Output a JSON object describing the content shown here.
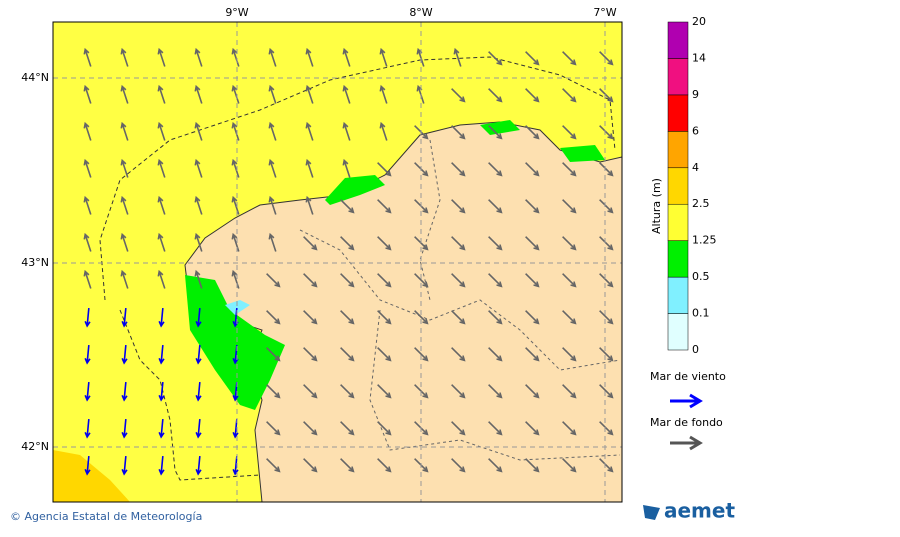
{
  "map": {
    "lon_labels": [
      "9°W",
      "8°W",
      "7°W"
    ],
    "lat_labels": [
      "44°N",
      "43°N",
      "42°N"
    ]
  },
  "colorbar": {
    "title": "Altura (m)",
    "ticks": [
      0,
      0.1,
      0.5,
      1.25,
      2.5,
      4,
      6,
      9,
      14,
      20
    ],
    "colors": [
      "#e0ffff",
      "#80f0ff",
      "#00f000",
      "#ffff33",
      "#ffd700",
      "#ffa500",
      "#ff0000",
      "#f01080",
      "#b000b0"
    ]
  },
  "legend": {
    "wind_sea": "Mar de viento",
    "swell": "Mar de fondo"
  },
  "footer": {
    "credit": "© Agencia Estatal de Meteorología",
    "logo": "aemet"
  }
}
